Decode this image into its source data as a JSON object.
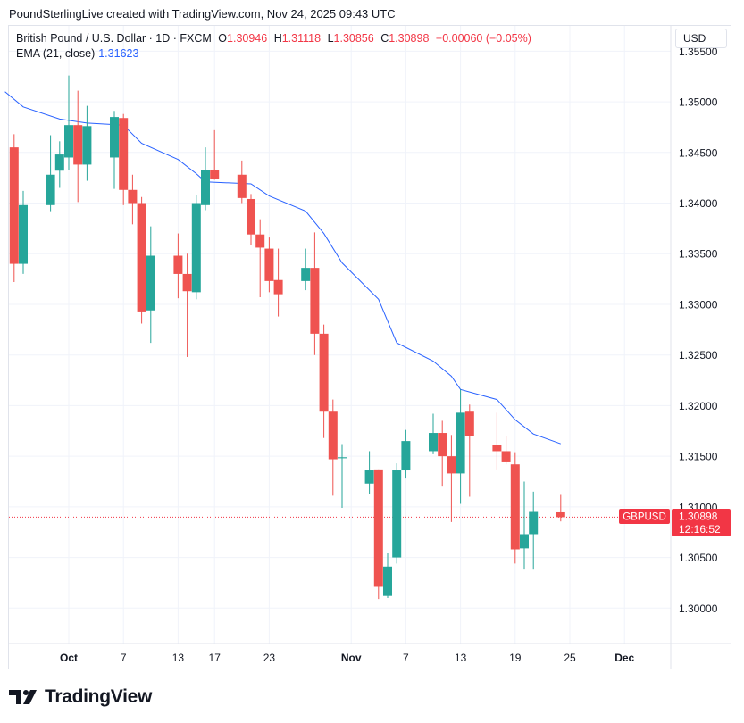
{
  "header": {
    "credit": "PoundSterlingLive created with TradingView.com, Nov 24, 2025 09:43 UTC"
  },
  "legend": {
    "symbol": "British Pound / U.S. Dollar · 1D · FXCM",
    "o_key": "O",
    "o": "1.30946",
    "h_key": "H",
    "h": "1.31118",
    "l_key": "L",
    "l": "1.30856",
    "c_key": "C",
    "c": "1.30898",
    "change": "−0.00060 (−0.05%)"
  },
  "ema": {
    "label": "EMA (21, close)",
    "value": "1.31623"
  },
  "currency_button": "USD",
  "price_label": {
    "ticker": "GBPUSD",
    "price": "1.30898",
    "countdown": "12:16:52"
  },
  "brand": {
    "name": "TradingView"
  },
  "colors": {
    "up": "#26a69a",
    "down": "#ef5350",
    "ema": "#2962ff",
    "grid": "#f0f3fa",
    "last_price": "#f23645"
  },
  "chart_data": {
    "type": "candlestick",
    "ylim": [
      1.2965,
      1.3575
    ],
    "yticks": [
      "1.30000",
      "1.30500",
      "1.31000",
      "1.31500",
      "1.32000",
      "1.32500",
      "1.33000",
      "1.33500",
      "1.34000",
      "1.34500",
      "1.35000",
      "1.35500"
    ],
    "xticks": [
      {
        "label": "Oct",
        "date": "2025-10-01"
      },
      {
        "label": "7",
        "date": "2025-10-07"
      },
      {
        "label": "13",
        "date": "2025-10-13"
      },
      {
        "label": "17",
        "date": "2025-10-17"
      },
      {
        "label": "23",
        "date": "2025-10-23"
      },
      {
        "label": "Nov",
        "date": "2025-11-01"
      },
      {
        "label": "7",
        "date": "2025-11-07"
      },
      {
        "label": "13",
        "date": "2025-11-13"
      },
      {
        "label": "19",
        "date": "2025-11-19"
      },
      {
        "label": "25",
        "date": "2025-11-25"
      },
      {
        "label": "Dec",
        "date": "2025-12-01"
      }
    ],
    "candles": [
      {
        "date": "2025-09-25",
        "o": 1.3455,
        "h": 1.3468,
        "l": 1.3322,
        "c": 1.334
      },
      {
        "date": "2025-09-26",
        "o": 1.334,
        "h": 1.3412,
        "l": 1.333,
        "c": 1.3398
      },
      {
        "date": "2025-09-29",
        "o": 1.3398,
        "h": 1.3467,
        "l": 1.3392,
        "c": 1.3428
      },
      {
        "date": "2025-09-30",
        "o": 1.3432,
        "h": 1.3461,
        "l": 1.3415,
        "c": 1.3448
      },
      {
        "date": "2025-10-01",
        "o": 1.3445,
        "h": 1.3526,
        "l": 1.3433,
        "c": 1.3477
      },
      {
        "date": "2025-10-02",
        "o": 1.3477,
        "h": 1.3511,
        "l": 1.3401,
        "c": 1.3438
      },
      {
        "date": "2025-10-03",
        "o": 1.3438,
        "h": 1.3496,
        "l": 1.3422,
        "c": 1.3476
      },
      {
        "date": "2025-10-06",
        "o": 1.3445,
        "h": 1.3491,
        "l": 1.3414,
        "c": 1.3485
      },
      {
        "date": "2025-10-07",
        "o": 1.3484,
        "h": 1.3488,
        "l": 1.3398,
        "c": 1.3413
      },
      {
        "date": "2025-10-08",
        "o": 1.3413,
        "h": 1.3428,
        "l": 1.3379,
        "c": 1.34
      },
      {
        "date": "2025-10-09",
        "o": 1.34,
        "h": 1.3406,
        "l": 1.3281,
        "c": 1.3293
      },
      {
        "date": "2025-10-10",
        "o": 1.3294,
        "h": 1.3377,
        "l": 1.3262,
        "c": 1.3348
      },
      {
        "date": "2025-10-13",
        "o": 1.3348,
        "h": 1.337,
        "l": 1.3306,
        "c": 1.333
      },
      {
        "date": "2025-10-14",
        "o": 1.333,
        "h": 1.335,
        "l": 1.3248,
        "c": 1.3313
      },
      {
        "date": "2025-10-15",
        "o": 1.3312,
        "h": 1.3408,
        "l": 1.3305,
        "c": 1.34
      },
      {
        "date": "2025-10-16",
        "o": 1.3398,
        "h": 1.3455,
        "l": 1.3393,
        "c": 1.3433
      },
      {
        "date": "2025-10-17",
        "o": 1.3433,
        "h": 1.3472,
        "l": 1.3423,
        "c": 1.3424
      },
      {
        "date": "2025-10-20",
        "o": 1.3428,
        "h": 1.3442,
        "l": 1.34,
        "c": 1.3405
      },
      {
        "date": "2025-10-21",
        "o": 1.3404,
        "h": 1.3409,
        "l": 1.3359,
        "c": 1.3369
      },
      {
        "date": "2025-10-22",
        "o": 1.3369,
        "h": 1.3384,
        "l": 1.3307,
        "c": 1.3356
      },
      {
        "date": "2025-10-23",
        "o": 1.3355,
        "h": 1.3366,
        "l": 1.3312,
        "c": 1.3323
      },
      {
        "date": "2025-10-24",
        "o": 1.3324,
        "h": 1.3355,
        "l": 1.3288,
        "c": 1.331
      },
      {
        "date": "2025-10-27",
        "o": 1.3323,
        "h": 1.3355,
        "l": 1.3314,
        "c": 1.3336
      },
      {
        "date": "2025-10-28",
        "o": 1.3336,
        "h": 1.3371,
        "l": 1.325,
        "c": 1.3271
      },
      {
        "date": "2025-10-29",
        "o": 1.3271,
        "h": 1.328,
        "l": 1.3168,
        "c": 1.3194
      },
      {
        "date": "2025-10-30",
        "o": 1.3194,
        "h": 1.3206,
        "l": 1.3111,
        "c": 1.3147
      },
      {
        "date": "2025-10-31",
        "o": 1.3148,
        "h": 1.3162,
        "l": 1.3099,
        "c": 1.3149
      },
      {
        "date": "2025-11-03",
        "o": 1.3123,
        "h": 1.3155,
        "l": 1.3113,
        "c": 1.3136
      },
      {
        "date": "2025-11-04",
        "o": 1.3137,
        "h": 1.3137,
        "l": 1.3009,
        "c": 1.3021
      },
      {
        "date": "2025-11-05",
        "o": 1.3012,
        "h": 1.3054,
        "l": 1.301,
        "c": 1.3041
      },
      {
        "date": "2025-11-06",
        "o": 1.305,
        "h": 1.3143,
        "l": 1.3044,
        "c": 1.3136
      },
      {
        "date": "2025-11-07",
        "o": 1.3136,
        "h": 1.3176,
        "l": 1.3128,
        "c": 1.3165
      },
      {
        "date": "2025-11-10",
        "o": 1.3155,
        "h": 1.3192,
        "l": 1.3152,
        "c": 1.3173
      },
      {
        "date": "2025-11-11",
        "o": 1.3173,
        "h": 1.3185,
        "l": 1.312,
        "c": 1.315
      },
      {
        "date": "2025-11-12",
        "o": 1.315,
        "h": 1.3171,
        "l": 1.3085,
        "c": 1.3133
      },
      {
        "date": "2025-11-13",
        "o": 1.3133,
        "h": 1.3216,
        "l": 1.3103,
        "c": 1.3193
      },
      {
        "date": "2025-11-14",
        "o": 1.3194,
        "h": 1.3201,
        "l": 1.311,
        "c": 1.317
      },
      {
        "date": "2025-11-17",
        "o": 1.3161,
        "h": 1.3193,
        "l": 1.3137,
        "c": 1.3155
      },
      {
        "date": "2025-11-18",
        "o": 1.3155,
        "h": 1.317,
        "l": 1.3142,
        "c": 1.3144
      },
      {
        "date": "2025-11-19",
        "o": 1.3142,
        "h": 1.3154,
        "l": 1.3044,
        "c": 1.3058
      },
      {
        "date": "2025-11-20",
        "o": 1.3059,
        "h": 1.3125,
        "l": 1.3038,
        "c": 1.3073
      },
      {
        "date": "2025-11-21",
        "o": 1.3073,
        "h": 1.3115,
        "l": 1.3038,
        "c": 1.3095
      },
      {
        "date": "2025-11-24",
        "o": 1.30946,
        "h": 1.31118,
        "l": 1.30856,
        "c": 1.30898
      }
    ],
    "ema": [
      {
        "date": "2025-09-24",
        "v": 1.351
      },
      {
        "date": "2025-09-26",
        "v": 1.3495
      },
      {
        "date": "2025-09-30",
        "v": 1.3483
      },
      {
        "date": "2025-10-03",
        "v": 1.3479
      },
      {
        "date": "2025-10-07",
        "v": 1.3477
      },
      {
        "date": "2025-10-09",
        "v": 1.3459
      },
      {
        "date": "2025-10-13",
        "v": 1.3443
      },
      {
        "date": "2025-10-15",
        "v": 1.3429
      },
      {
        "date": "2025-10-16",
        "v": 1.3421
      },
      {
        "date": "2025-10-21",
        "v": 1.3419
      },
      {
        "date": "2025-10-23",
        "v": 1.3407
      },
      {
        "date": "2025-10-27",
        "v": 1.3392
      },
      {
        "date": "2025-10-29",
        "v": 1.337
      },
      {
        "date": "2025-10-31",
        "v": 1.3341
      },
      {
        "date": "2025-11-04",
        "v": 1.3305
      },
      {
        "date": "2025-11-06",
        "v": 1.3262
      },
      {
        "date": "2025-11-10",
        "v": 1.3244
      },
      {
        "date": "2025-11-12",
        "v": 1.3229
      },
      {
        "date": "2025-11-13",
        "v": 1.3216
      },
      {
        "date": "2025-11-17",
        "v": 1.3206
      },
      {
        "date": "2025-11-19",
        "v": 1.3186
      },
      {
        "date": "2025-11-21",
        "v": 1.3172
      },
      {
        "date": "2025-11-24",
        "v": 1.31623
      }
    ]
  }
}
